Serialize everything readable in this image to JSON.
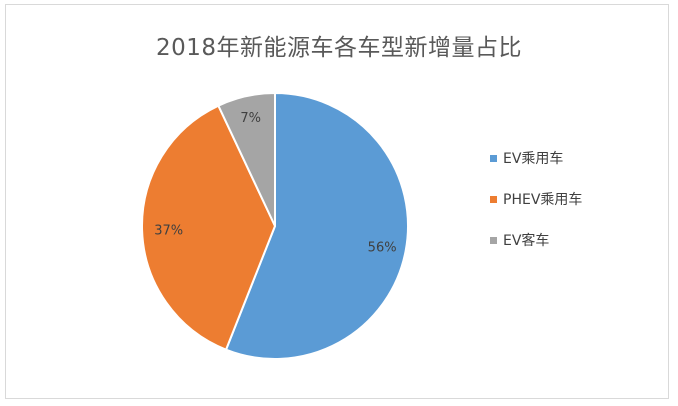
{
  "chart_data": {
    "type": "pie",
    "title": "2018年新能源车各车型新增量占比",
    "categories": [
      "EV乘用车",
      "PHEV乘用车",
      "EV客车"
    ],
    "values": [
      56,
      37,
      7
    ],
    "labels": [
      "56%",
      "37%",
      "7%"
    ],
    "colors": [
      "#5b9bd5",
      "#ed7d31",
      "#a5a5a5"
    ],
    "legend_position": "right"
  }
}
